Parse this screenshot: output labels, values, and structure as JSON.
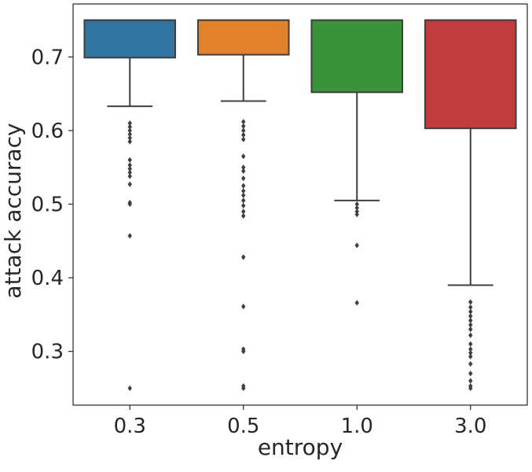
{
  "chart_data": {
    "type": "box",
    "title": "",
    "xlabel": "entropy",
    "ylabel": "attack accuracy",
    "categories": [
      "0.3",
      "0.5",
      "1.0",
      "3.0"
    ],
    "y_ticks": [
      "0.3",
      "0.4",
      "0.5",
      "0.6",
      "0.7"
    ],
    "y_tick_values": [
      0.3,
      0.4,
      0.5,
      0.6,
      0.7
    ],
    "ylim": [
      0.227,
      0.772
    ],
    "grid": false,
    "boxes": [
      {
        "category": "0.3",
        "color": "#3274a1",
        "whisker_low": 0.633,
        "q1": 0.699,
        "median": 0.75,
        "q3": 0.75,
        "whisker_high": 0.75,
        "outliers": [
          0.61,
          0.605,
          0.6,
          0.595,
          0.59,
          0.585,
          0.56,
          0.553,
          0.548,
          0.543,
          0.538,
          0.527,
          0.502,
          0.5,
          0.457,
          0.25
        ]
      },
      {
        "category": "0.5",
        "color": "#e1812c",
        "whisker_low": 0.64,
        "q1": 0.703,
        "median": 0.75,
        "q3": 0.75,
        "whisker_high": 0.75,
        "outliers": [
          0.612,
          0.606,
          0.6,
          0.594,
          0.588,
          0.565,
          0.55,
          0.545,
          0.535,
          0.525,
          0.518,
          0.512,
          0.505,
          0.498,
          0.49,
          0.484,
          0.428,
          0.361,
          0.303,
          0.3,
          0.253,
          0.25
        ]
      },
      {
        "category": "1.0",
        "color": "#3a923a",
        "whisker_low": 0.505,
        "q1": 0.652,
        "median": 0.75,
        "q3": 0.75,
        "whisker_high": 0.75,
        "outliers": [
          0.5,
          0.495,
          0.49,
          0.486,
          0.444,
          0.366
        ]
      },
      {
        "category": "3.0",
        "color": "#c03d3e",
        "whisker_low": 0.39,
        "q1": 0.603,
        "median": 0.75,
        "q3": 0.75,
        "whisker_high": 0.75,
        "outliers": [
          0.367,
          0.36,
          0.354,
          0.348,
          0.342,
          0.336,
          0.33,
          0.322,
          0.31,
          0.303,
          0.298,
          0.293,
          0.283,
          0.27,
          0.26,
          0.253,
          0.25
        ]
      }
    ]
  }
}
